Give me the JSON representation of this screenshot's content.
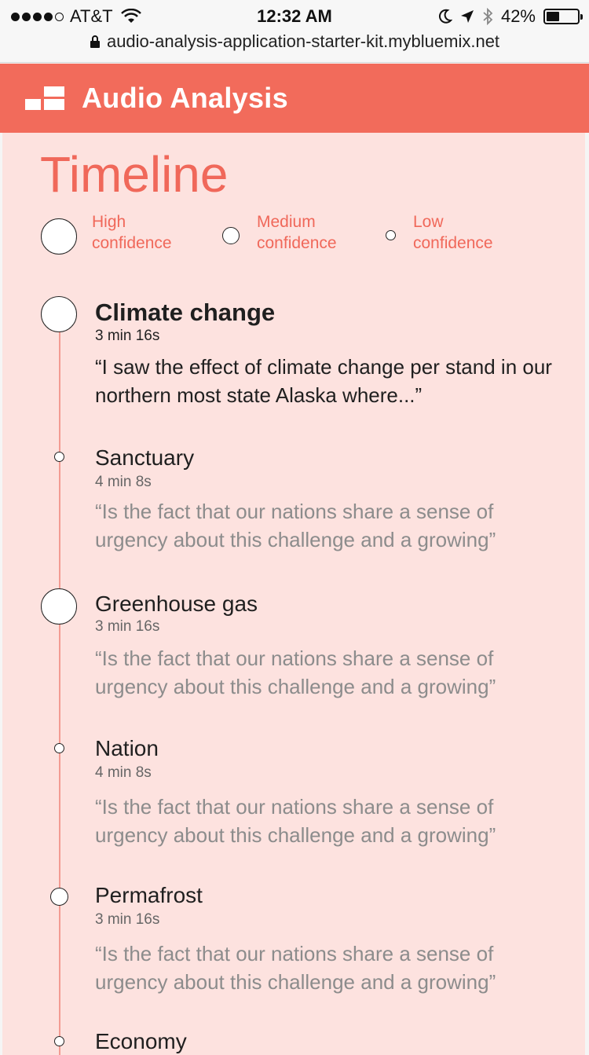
{
  "status": {
    "carrier": "AT&T",
    "time": "12:32 AM",
    "battery": "42%",
    "url": "audio-analysis-application-starter-kit.mybluemix.net"
  },
  "app": {
    "title": "Audio Analysis"
  },
  "page": {
    "title": "Timeline"
  },
  "legend": {
    "high": "High confidence",
    "medium": "Medium confidence",
    "low": "Low confidence"
  },
  "entries": [
    {
      "topic": "Climate change",
      "time": "3 min 16s",
      "quote": "“I saw the effect of climate change per stand in our northern most state Alaska where...”",
      "confidence": "high"
    },
    {
      "topic": "Sanctuary",
      "time": "4 min 8s",
      "quote": "“Is the fact that our nations share a sense of urgency about this challenge and a growing”",
      "confidence": "low"
    },
    {
      "topic": "Greenhouse gas",
      "time": "3 min 16s",
      "quote": "“Is the fact that our nations share a sense of urgency about this challenge and a growing”",
      "confidence": "high"
    },
    {
      "topic": "Nation",
      "time": "4 min 8s",
      "quote": "“Is the fact that our nations share a sense of urgency about this challenge and a growing”",
      "confidence": "low"
    },
    {
      "topic": "Permafrost",
      "time": "3 min 16s",
      "quote": "“Is the fact that our nations share a sense of urgency about this challenge and a growing”",
      "confidence": "medium"
    },
    {
      "topic": "Economy",
      "time": "",
      "quote": "",
      "confidence": "low"
    }
  ],
  "colors": {
    "accent": "#f26b5b",
    "background": "#fde2df",
    "line": "#f39b92"
  }
}
